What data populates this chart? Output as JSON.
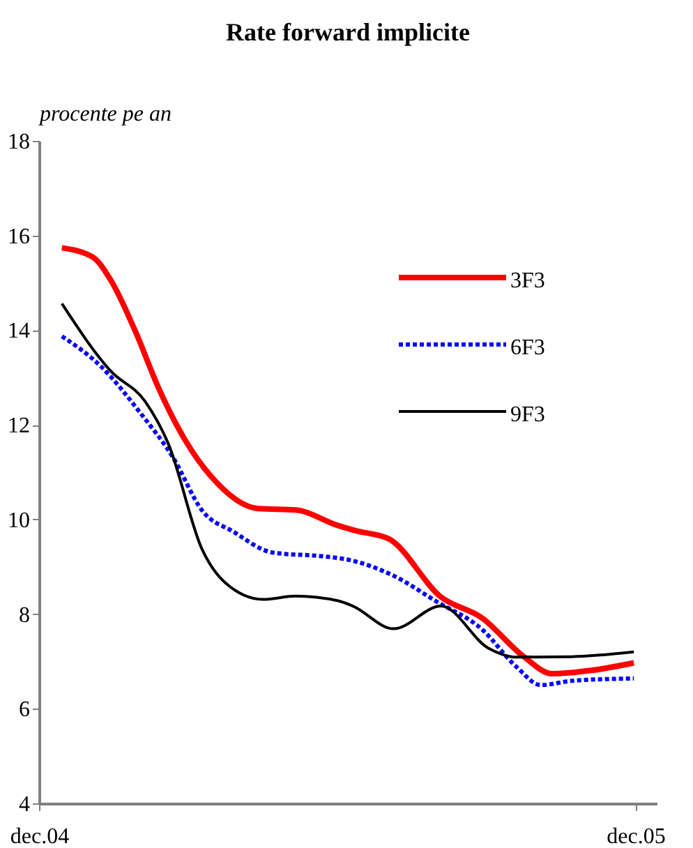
{
  "chart_data": {
    "type": "line",
    "title": "Rate forward implicite",
    "ylabel": "procente pe an",
    "xlim": [
      "2004-12-01",
      "2005-12-14"
    ],
    "xticks": [
      {
        "value": "2004-12-01",
        "label": "dec.04"
      },
      {
        "value": "2005-12-01",
        "label": "dec.05"
      }
    ],
    "ylim": [
      4,
      18
    ],
    "yticks": [
      4,
      6,
      8,
      10,
      12,
      14,
      16,
      18
    ],
    "grid": false,
    "legend": "top right",
    "marker": "none",
    "series": [
      {
        "name": "3F3",
        "color": "#ff0000",
        "line_style": "solid",
        "x": [
          "2004-12-15",
          "2005-01-03",
          "2005-01-14",
          "2005-01-29",
          "2005-02-12",
          "2005-02-28",
          "2005-03-16",
          "2005-04-14",
          "2005-05-07",
          "2005-06-02",
          "2005-06-13",
          "2005-07-03",
          "2005-08-04",
          "2005-08-29",
          "2005-09-24",
          "2005-10-11",
          "2005-11-04",
          "2005-11-30"
        ],
        "values": [
          15.74,
          15.54,
          15.05,
          13.97,
          12.79,
          11.7,
          10.92,
          10.23,
          10.2,
          9.87,
          9.76,
          9.59,
          8.36,
          7.92,
          7.09,
          6.74,
          6.81,
          6.97
        ]
      },
      {
        "name": "6F3",
        "color": "#0000ff",
        "line_style": "dotted",
        "x": [
          "2004-12-15",
          "2005-01-08",
          "2005-02-01",
          "2005-02-21",
          "2005-03-11",
          "2005-03-30",
          "2005-04-23",
          "2005-05-24",
          "2005-06-08",
          "2005-07-06",
          "2005-08-01",
          "2005-08-29",
          "2005-09-19",
          "2005-10-04",
          "2005-10-23",
          "2005-11-30"
        ],
        "values": [
          13.87,
          13.23,
          12.25,
          11.31,
          10.18,
          9.74,
          9.3,
          9.22,
          9.15,
          8.81,
          8.27,
          7.68,
          6.89,
          6.5,
          6.59,
          6.64
        ]
      },
      {
        "name": "9F3",
        "color": "#000000",
        "line_style": "solid",
        "x": [
          "2004-12-15",
          "2005-01-14",
          "2005-02-04",
          "2005-02-18",
          "2005-03-11",
          "2005-03-25",
          "2005-04-17",
          "2005-05-07",
          "2005-06-02",
          "2005-06-11",
          "2005-07-06",
          "2005-08-04",
          "2005-09-02",
          "2005-09-19",
          "2005-10-23",
          "2005-11-30"
        ],
        "values": [
          14.56,
          13.13,
          12.49,
          11.61,
          9.35,
          8.66,
          8.31,
          8.38,
          8.28,
          8.17,
          7.69,
          8.17,
          7.28,
          7.09,
          7.1,
          7.2
        ]
      }
    ]
  }
}
